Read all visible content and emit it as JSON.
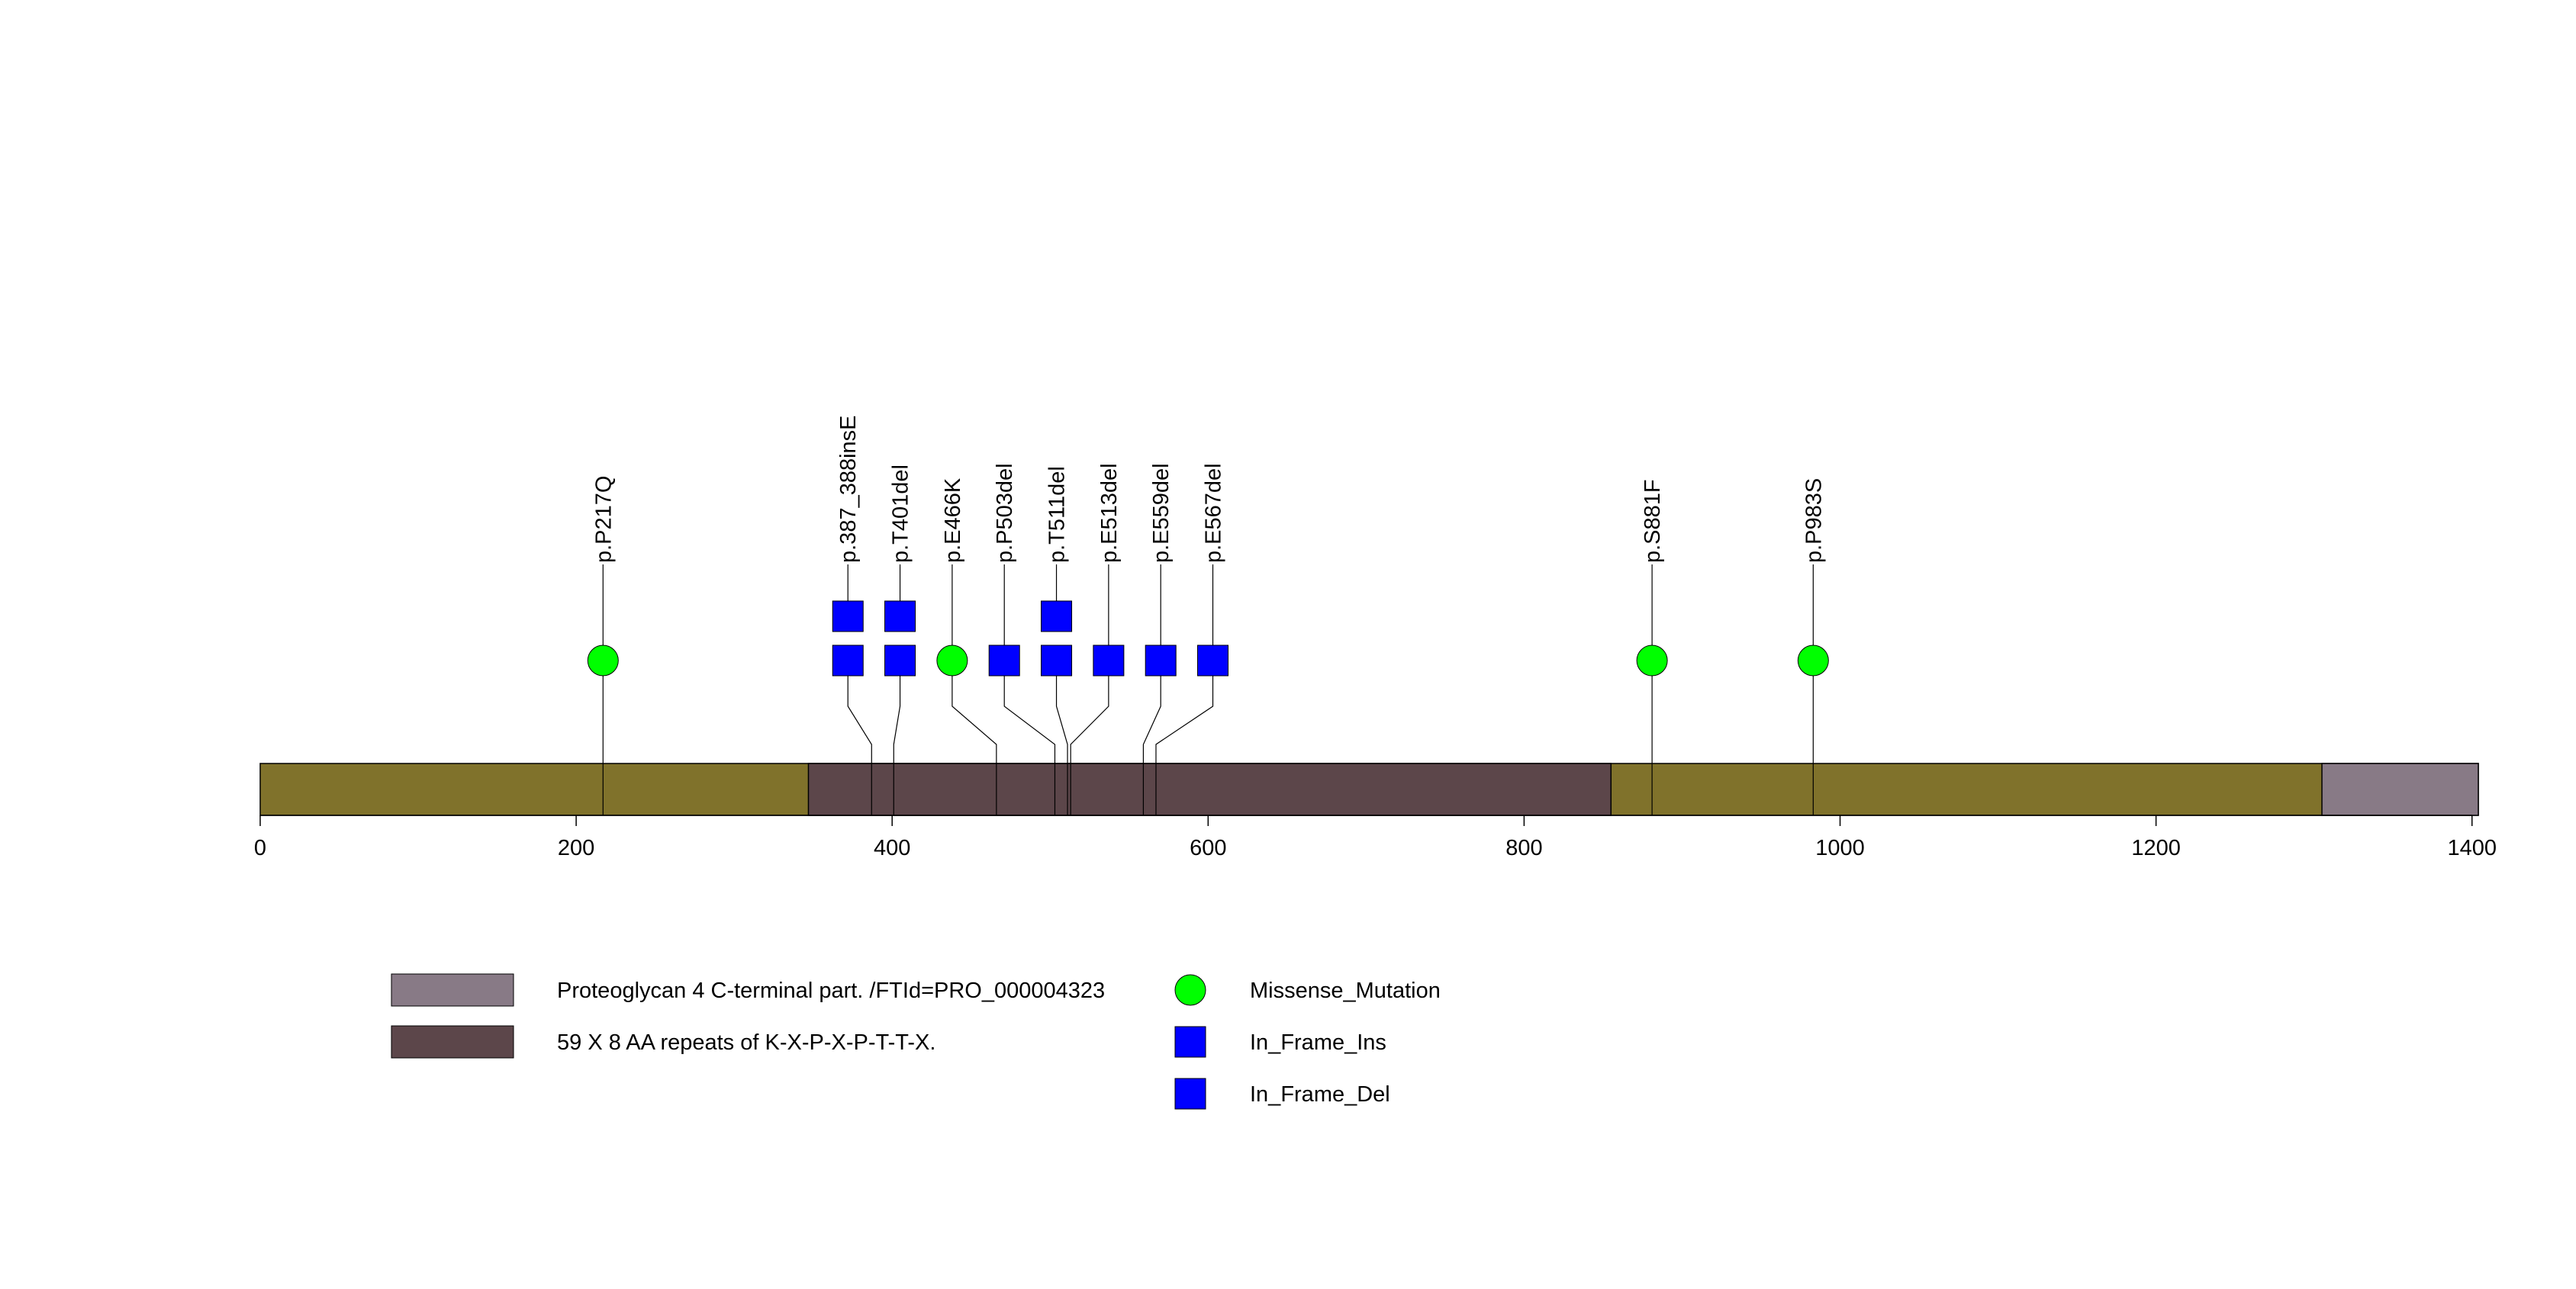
{
  "colors": {
    "background": "#ffffff",
    "protein_backbone": "#80722b",
    "outline": "#000000",
    "missense": "#00ff00",
    "inframe": "#0000ff",
    "stem": "#000000"
  },
  "chart_data": {
    "type": "lollipop",
    "title": "",
    "xlabel": "",
    "ylabel": "",
    "xlim": [
      0,
      1404
    ],
    "x_ticks": [
      0,
      200,
      400,
      600,
      800,
      1000,
      1200,
      1400
    ],
    "protein_length": 1404,
    "domains": [
      {
        "name": "59 X 8 AA repeats of K-X-P-X-P-T-T-X.",
        "start": 347,
        "end": 855,
        "color": "#5c464a"
      },
      {
        "name": "Proteoglycan 4 C-terminal part. /FTId=PRO_000004323",
        "start": 1305,
        "end": 1404,
        "color": "#887a86"
      }
    ],
    "mutations": [
      {
        "label": "p.P217Q",
        "position": 217,
        "display_position": 217,
        "stack": [
          {
            "type": "Missense_Mutation"
          }
        ]
      },
      {
        "label": "p.387_388insE",
        "position": 387,
        "display_position": 372,
        "stack": [
          {
            "type": "In_Frame_Ins"
          },
          {
            "type": "In_Frame_Ins"
          }
        ]
      },
      {
        "label": "p.T401del",
        "position": 401,
        "display_position": 405,
        "stack": [
          {
            "type": "In_Frame_Del"
          },
          {
            "type": "In_Frame_Del"
          }
        ]
      },
      {
        "label": "p.E466K",
        "position": 466,
        "display_position": 438,
        "stack": [
          {
            "type": "Missense_Mutation"
          }
        ]
      },
      {
        "label": "p.P503del",
        "position": 503,
        "display_position": 471,
        "stack": [
          {
            "type": "In_Frame_Del"
          }
        ]
      },
      {
        "label": "p.T511del",
        "position": 511,
        "display_position": 504,
        "stack": [
          {
            "type": "In_Frame_Del"
          },
          {
            "type": "In_Frame_Del"
          }
        ]
      },
      {
        "label": "p.E513del",
        "position": 513,
        "display_position": 537,
        "stack": [
          {
            "type": "In_Frame_Del"
          }
        ]
      },
      {
        "label": "p.E559del",
        "position": 559,
        "display_position": 570,
        "stack": [
          {
            "type": "In_Frame_Del"
          }
        ]
      },
      {
        "label": "p.E567del",
        "position": 567,
        "display_position": 603,
        "stack": [
          {
            "type": "In_Frame_Del"
          }
        ]
      },
      {
        "label": "p.S881F",
        "position": 881,
        "display_position": 881,
        "stack": [
          {
            "type": "Missense_Mutation"
          }
        ]
      },
      {
        "label": "p.P983S",
        "position": 983,
        "display_position": 983,
        "stack": [
          {
            "type": "Missense_Mutation"
          }
        ]
      }
    ],
    "legend_domains": [
      {
        "label": "Proteoglycan 4 C-terminal part. /FTId=PRO_000004323",
        "color": "#887a86"
      },
      {
        "label": "59 X 8 AA repeats of K-X-P-X-P-T-T-X.",
        "color": "#5c464a"
      }
    ],
    "legend_mutations": [
      {
        "label": "Missense_Mutation",
        "shape": "circle",
        "color": "#00ff00"
      },
      {
        "label": "In_Frame_Ins",
        "shape": "square",
        "color": "#0000ff"
      },
      {
        "label": "In_Frame_Del",
        "shape": "square",
        "color": "#0000ff"
      }
    ]
  }
}
